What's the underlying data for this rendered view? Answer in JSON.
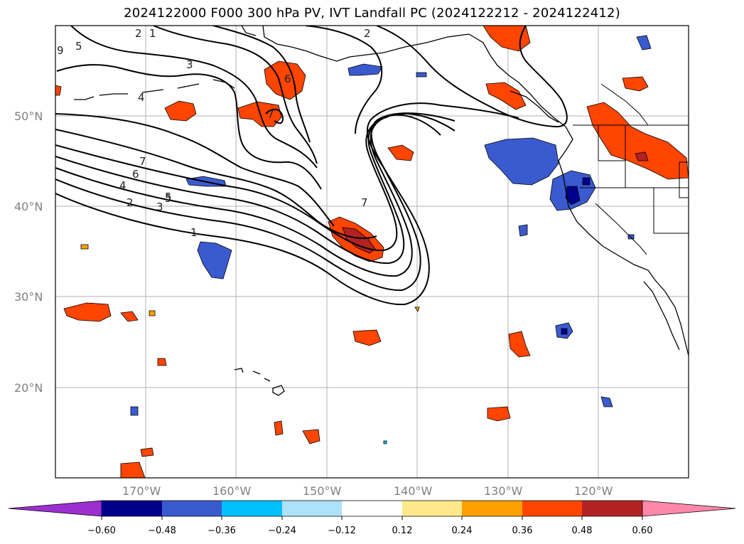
{
  "title": "2024122000 F000 300 hPa PV, IVT Landfall PC (2024122212 - 2024122412)",
  "map": {
    "lon_labels": [
      "170°W",
      "160°W",
      "150°W",
      "140°W",
      "130°W",
      "120°W"
    ],
    "lat_labels": [
      "50°N",
      "40°N",
      "30°N",
      "20°N"
    ],
    "contour_labels": [
      "2",
      "1",
      "3",
      "4",
      "5",
      "6",
      "7",
      "7",
      "6",
      "5",
      "4",
      "2",
      "3",
      "1",
      "9",
      "5",
      "2",
      "7"
    ]
  },
  "colorbar": {
    "colors": [
      "#9b30d0",
      "#00008b",
      "#3a5bd0",
      "#00bfff",
      "#ade3fa",
      "#ffffff",
      "#ffe98a",
      "#ffa000",
      "#ff4500",
      "#b22222",
      "#ff88aa"
    ],
    "tick_labels": [
      "−0.60",
      "−0.48",
      "−0.36",
      "−0.24",
      "−0.12",
      "0.12",
      "0.24",
      "0.36",
      "0.48",
      "0.60"
    ]
  }
}
